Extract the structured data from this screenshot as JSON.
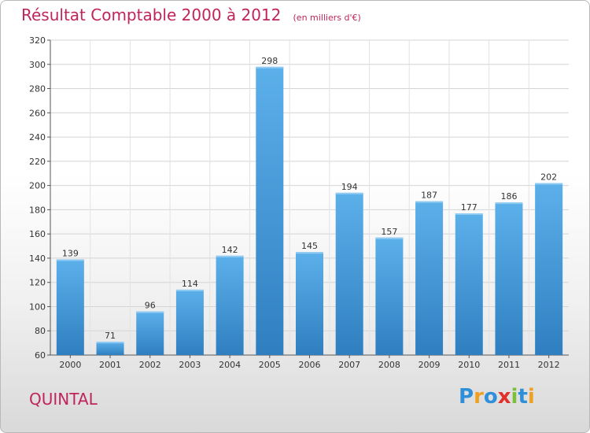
{
  "title": {
    "main": "Résultat Comptable 2000 à 2012",
    "sub": "(en milliers d'€)"
  },
  "commune": "QUINTAL",
  "logo": {
    "text": "Proxiti",
    "letters": [
      {
        "ch": "P",
        "color": "#2f8fd8"
      },
      {
        "ch": "r",
        "color": "#f0a020"
      },
      {
        "ch": "o",
        "color": "#2f8fd8"
      },
      {
        "ch": "x",
        "color": "#e0302a"
      },
      {
        "ch": "i",
        "color": "#7bbf3a"
      },
      {
        "ch": "t",
        "color": "#2f8fd8"
      },
      {
        "ch": "i",
        "color": "#f0a020"
      }
    ]
  },
  "chart_data": {
    "type": "bar",
    "title": "Résultat Comptable 2000 à 2012",
    "xlabel": "",
    "ylabel": "",
    "categories": [
      "2000",
      "2001",
      "2002",
      "2003",
      "2004",
      "2005",
      "2006",
      "2007",
      "2008",
      "2009",
      "2010",
      "2011",
      "2012"
    ],
    "values": [
      139,
      71,
      96,
      114,
      142,
      298,
      145,
      194,
      157,
      187,
      177,
      186,
      202
    ],
    "ylim": [
      60,
      320
    ],
    "yticks": [
      60,
      80,
      100,
      120,
      140,
      160,
      180,
      200,
      220,
      240,
      260,
      280,
      300,
      320
    ],
    "grid": true,
    "bar_color": "#4aa3e3",
    "title_color": "#c0245c"
  }
}
